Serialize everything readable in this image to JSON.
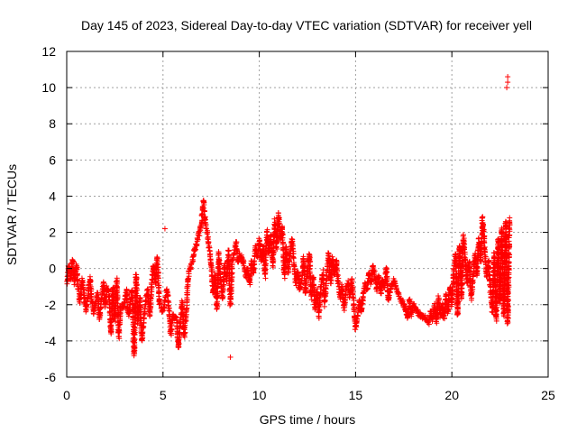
{
  "chart_data": {
    "type": "scatter",
    "title": "Day 145 of 2023, Sidereal Day-to-day VTEC variation (SDTVAR) for receiver yell",
    "xlabel": "GPS time / hours",
    "ylabel": "SDTVAR / TECUs",
    "xlim": [
      0,
      25
    ],
    "ylim": [
      -6,
      12
    ],
    "xticks": [
      0,
      5,
      10,
      15,
      20,
      25
    ],
    "xtick_labels": [
      "0",
      "5",
      "10",
      "15",
      "20",
      "25"
    ],
    "yticks": [
      -6,
      -4,
      -2,
      0,
      2,
      4,
      6,
      8,
      10,
      12
    ],
    "ytick_labels": [
      "-6",
      "-4",
      "-2",
      "0",
      "2",
      "4",
      "6",
      "8",
      "10",
      "12"
    ],
    "grid": true,
    "marker": "+",
    "color": "#ff0000",
    "series": [
      {
        "name": "SDTVAR",
        "trace": [
          [
            0.0,
            -1.0
          ],
          [
            0.1,
            0.2
          ],
          [
            0.2,
            -0.6
          ],
          [
            0.3,
            0.5
          ],
          [
            0.4,
            -0.8
          ],
          [
            0.5,
            0.2
          ],
          [
            0.6,
            -1.2
          ],
          [
            0.7,
            -1.8
          ],
          [
            0.8,
            -0.6
          ],
          [
            0.9,
            -1.6
          ],
          [
            1.0,
            -2.3
          ],
          [
            1.1,
            -1.5
          ],
          [
            1.2,
            -0.5
          ],
          [
            1.3,
            -1.8
          ],
          [
            1.4,
            -2.4
          ],
          [
            1.6,
            -1.4
          ],
          [
            1.7,
            -2.8
          ],
          [
            1.9,
            -0.8
          ],
          [
            2.0,
            -2.1
          ],
          [
            2.1,
            -1.0
          ],
          [
            2.2,
            -1.5
          ],
          [
            2.3,
            -3.6
          ],
          [
            2.4,
            -1.0
          ],
          [
            2.5,
            -2.8
          ],
          [
            2.6,
            -0.6
          ],
          [
            2.7,
            -3.8
          ],
          [
            2.8,
            -2.2
          ],
          [
            3.0,
            -2.0
          ],
          [
            3.1,
            -1.2
          ],
          [
            3.2,
            -2.6
          ],
          [
            3.4,
            -1.2
          ],
          [
            3.5,
            -4.8
          ],
          [
            3.6,
            -0.4
          ],
          [
            3.7,
            -3.0
          ],
          [
            3.8,
            -1.6
          ],
          [
            3.9,
            -4.0
          ],
          [
            4.1,
            -1.8
          ],
          [
            4.2,
            -1.2
          ],
          [
            4.3,
            -2.6
          ],
          [
            4.5,
            0.2
          ],
          [
            4.6,
            -0.8
          ],
          [
            4.7,
            0.6
          ],
          [
            4.8,
            -1.8
          ],
          [
            5.0,
            -2.4
          ],
          [
            5.2,
            -1.2
          ],
          [
            5.3,
            -2.0
          ],
          [
            5.4,
            -3.6
          ],
          [
            5.5,
            -2.6
          ],
          [
            5.7,
            -2.8
          ],
          [
            5.8,
            -4.4
          ],
          [
            5.9,
            -3.0
          ],
          [
            6.0,
            -1.8
          ],
          [
            6.1,
            -3.8
          ],
          [
            6.2,
            -2.6
          ],
          [
            6.3,
            -0.5
          ],
          [
            7.0,
            2.5
          ],
          [
            7.1,
            3.8
          ],
          [
            7.2,
            2.6
          ],
          [
            7.3,
            2.0
          ],
          [
            7.5,
            0.2
          ],
          [
            7.6,
            -1.4
          ],
          [
            7.7,
            -0.3
          ],
          [
            7.8,
            -2.2
          ],
          [
            7.9,
            0.8
          ],
          [
            8.0,
            -0.8
          ],
          [
            8.1,
            -1.6
          ],
          [
            8.2,
            0.2
          ],
          [
            8.3,
            -0.6
          ],
          [
            8.4,
            1.0
          ],
          [
            8.5,
            -2.0
          ],
          [
            8.6,
            0.4
          ],
          [
            8.8,
            1.4
          ],
          [
            8.9,
            0.4
          ],
          [
            9.0,
            0.8
          ],
          [
            9.2,
            0.2
          ],
          [
            9.3,
            -0.5
          ],
          [
            9.4,
            0.0
          ],
          [
            9.5,
            -0.8
          ],
          [
            9.6,
            0.4
          ],
          [
            9.7,
            -0.2
          ],
          [
            9.8,
            1.2
          ],
          [
            9.9,
            0.6
          ],
          [
            10.0,
            1.6
          ],
          [
            10.1,
            0.4
          ],
          [
            10.2,
            1.2
          ],
          [
            10.3,
            -0.4
          ],
          [
            10.4,
            2.0
          ],
          [
            10.5,
            0.8
          ],
          [
            10.6,
            1.8
          ],
          [
            10.7,
            0.2
          ],
          [
            10.8,
            2.6
          ],
          [
            10.9,
            1.2
          ],
          [
            11.0,
            3.0
          ],
          [
            11.1,
            1.6
          ],
          [
            11.2,
            2.2
          ],
          [
            11.3,
            -0.4
          ],
          [
            11.4,
            1.2
          ],
          [
            11.5,
            -0.2
          ],
          [
            11.6,
            0.8
          ],
          [
            11.7,
            1.6
          ],
          [
            11.8,
            0.2
          ],
          [
            11.9,
            -0.8
          ],
          [
            12.0,
            -0.2
          ],
          [
            12.1,
            -1.2
          ],
          [
            12.2,
            -0.6
          ],
          [
            12.3,
            0.6
          ],
          [
            12.4,
            -1.4
          ],
          [
            12.5,
            -0.2
          ],
          [
            12.6,
            0.8
          ],
          [
            12.7,
            -1.6
          ],
          [
            12.8,
            -0.4
          ],
          [
            12.9,
            -2.2
          ],
          [
            13.0,
            -1.2
          ],
          [
            13.1,
            -2.6
          ],
          [
            13.2,
            -1.0
          ],
          [
            13.3,
            -0.2
          ],
          [
            13.4,
            -2.0
          ],
          [
            13.5,
            -0.4
          ],
          [
            13.6,
            0.8
          ],
          [
            13.7,
            -0.8
          ],
          [
            13.8,
            0.6
          ],
          [
            13.9,
            -0.4
          ],
          [
            14.0,
            0.4
          ],
          [
            14.1,
            -0.8
          ],
          [
            14.2,
            -1.6
          ],
          [
            14.3,
            -1.0
          ],
          [
            14.4,
            -2.2
          ],
          [
            14.5,
            -1.2
          ],
          [
            14.6,
            -0.8
          ],
          [
            14.7,
            -1.6
          ],
          [
            14.8,
            -0.6
          ],
          [
            14.9,
            -2.0
          ],
          [
            15.0,
            -3.4
          ],
          [
            15.1,
            -2.6
          ],
          [
            15.2,
            -1.8
          ],
          [
            15.3,
            -2.4
          ],
          [
            15.4,
            -1.4
          ],
          [
            15.5,
            -0.8
          ],
          [
            15.6,
            -1.2
          ],
          [
            15.7,
            -0.2
          ],
          [
            15.8,
            -0.8
          ],
          [
            15.9,
            0.2
          ],
          [
            16.0,
            -0.4
          ],
          [
            16.1,
            -1.2
          ],
          [
            16.2,
            -0.4
          ],
          [
            16.3,
            -1.4
          ],
          [
            16.4,
            -0.6
          ],
          [
            16.5,
            -1.0
          ],
          [
            16.6,
            0.0
          ],
          [
            16.7,
            -1.8
          ],
          [
            16.8,
            -1.2
          ],
          [
            17.0,
            -0.6
          ],
          [
            17.2,
            -1.4
          ],
          [
            17.4,
            -1.8
          ],
          [
            17.6,
            -2.2
          ],
          [
            17.7,
            -2.8
          ],
          [
            17.8,
            -1.8
          ],
          [
            17.9,
            -2.6
          ],
          [
            18.0,
            -2.0
          ],
          [
            18.2,
            -2.4
          ],
          [
            18.7,
            -2.8
          ],
          [
            18.8,
            -3.0
          ],
          [
            18.9,
            -2.4
          ],
          [
            19.0,
            -2.8
          ],
          [
            19.1,
            -2.0
          ],
          [
            19.2,
            -3.0
          ],
          [
            19.3,
            -1.6
          ],
          [
            19.4,
            -2.6
          ],
          [
            19.5,
            -2.0
          ],
          [
            19.6,
            -2.8
          ],
          [
            19.7,
            -1.4
          ],
          [
            19.8,
            -2.4
          ],
          [
            19.9,
            -1.0
          ],
          [
            20.0,
            -2.0
          ],
          [
            20.1,
            -0.2
          ],
          [
            20.2,
            0.8
          ],
          [
            20.3,
            -2.6
          ],
          [
            20.4,
            1.2
          ],
          [
            20.5,
            -1.6
          ],
          [
            20.6,
            1.8
          ],
          [
            20.7,
            0.2
          ],
          [
            20.8,
            -0.8
          ],
          [
            20.9,
            0.4
          ],
          [
            21.0,
            -1.6
          ],
          [
            21.1,
            -0.6
          ],
          [
            21.2,
            0.8
          ],
          [
            21.3,
            -0.4
          ],
          [
            21.4,
            1.6
          ],
          [
            21.5,
            0.4
          ],
          [
            21.6,
            2.8
          ],
          [
            21.7,
            1.2
          ],
          [
            21.8,
            -0.4
          ],
          [
            21.9,
            0.4
          ],
          [
            22.0,
            -1.2
          ],
          [
            22.1,
            -2.4
          ],
          [
            22.2,
            0.8
          ],
          [
            22.3,
            -2.8
          ],
          [
            22.4,
            1.6
          ],
          [
            22.5,
            -1.8
          ],
          [
            22.6,
            2.2
          ],
          [
            22.7,
            -2.6
          ],
          [
            22.8,
            2.6
          ],
          [
            22.9,
            -3.0
          ],
          [
            23.0,
            2.8
          ]
        ],
        "outliers": [
          [
            5.1,
            2.2
          ],
          [
            8.5,
            -4.9
          ],
          [
            22.9,
            10.3
          ],
          [
            22.9,
            10.6
          ],
          [
            22.85,
            10.0
          ]
        ]
      }
    ]
  }
}
